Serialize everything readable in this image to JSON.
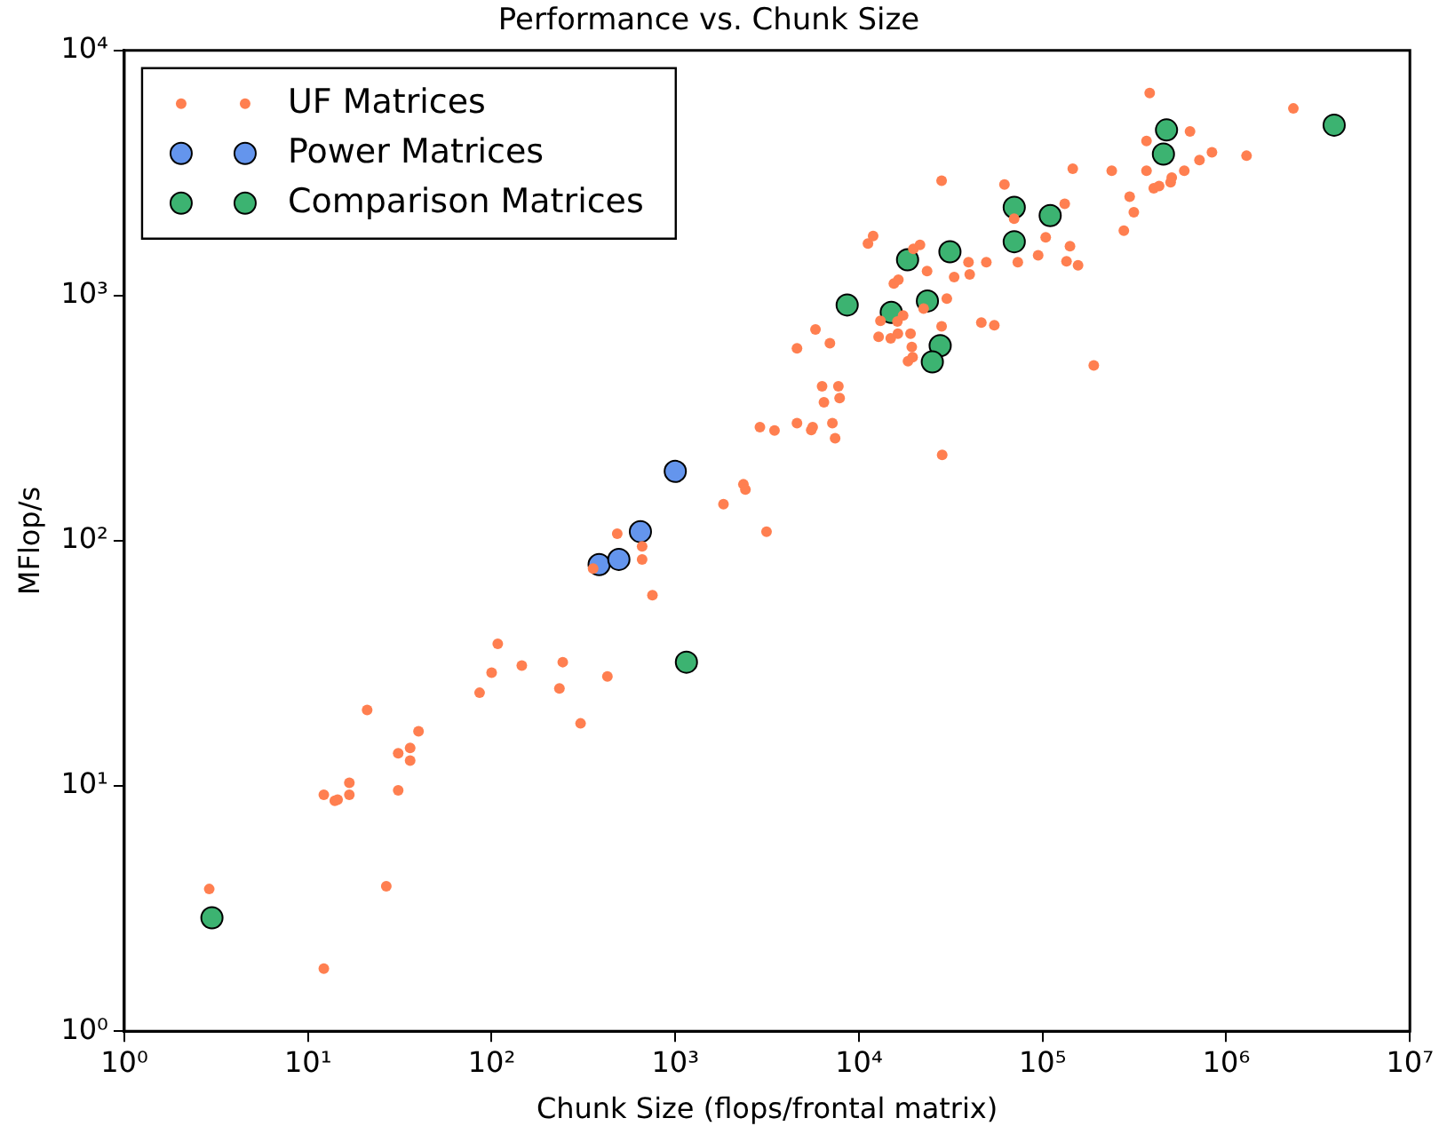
{
  "chart_data": {
    "type": "scatter",
    "title": "Performance vs. Chunk Size",
    "xlabel": "Chunk Size (flops/frontal matrix)",
    "ylabel": "MFlop/s",
    "log": "xy",
    "grid": false,
    "legend": "top left",
    "marker": "circle",
    "xlim": [
      1,
      10000000
    ],
    "ylim": [
      1,
      10000
    ],
    "xticks": [
      {
        "value": 1,
        "label": "10⁰"
      },
      {
        "value": 10,
        "label": "10¹"
      },
      {
        "value": 100,
        "label": "10²"
      },
      {
        "value": 1000,
        "label": "10³"
      },
      {
        "value": 10000,
        "label": "10⁴"
      },
      {
        "value": 100000,
        "label": "10⁵"
      },
      {
        "value": 1000000,
        "label": "10⁶"
      },
      {
        "value": 10000000,
        "label": "10⁷"
      }
    ],
    "yticks": [
      {
        "value": 1,
        "label": "10⁰"
      },
      {
        "value": 10,
        "label": "10¹"
      },
      {
        "value": 100,
        "label": "10²"
      },
      {
        "value": 1000,
        "label": "10³"
      },
      {
        "value": 10000,
        "label": "10⁴"
      }
    ],
    "series": [
      {
        "name": "UF Matrices",
        "color": "#ff7f50",
        "x": [
          2.9,
          12.2,
          12.2,
          14,
          14.5,
          16.8,
          16.8,
          21,
          26.7,
          31,
          31,
          36,
          36,
          40,
          86,
          100,
          108,
          146,
          234,
          244,
          305,
          427,
          751,
          357,
          483,
          660,
          660,
          1830,
          2350,
          2410,
          3140,
          2890,
          3470,
          4600,
          5500,
          5600,
          7170,
          7420,
          6300,
          7730,
          6450,
          7850,
          4600,
          5800,
          6950,
          11200,
          11950,
          13100,
          12800,
          14900,
          16200,
          17400,
          16300,
          19100,
          19400,
          18500,
          19600,
          22500,
          28200,
          30100,
          28400,
          15500,
          16400,
          19800,
          21500,
          23500,
          33000,
          39500,
          40100,
          49400,
          28200,
          46400,
          54600,
          62000,
          70000,
          73300,
          94600,
          104000,
          132000,
          141000,
          135000,
          156000,
          146000,
          190000,
          238000,
          277000,
          298000,
          314000,
          368000,
          368000,
          403000,
          431000,
          498000,
          505000,
          591000,
          635000,
          715000,
          836000,
          1290000,
          383000,
          2320000
        ],
        "values": [
          3.8,
          1.8,
          9.2,
          8.7,
          8.8,
          9.2,
          10.3,
          20.4,
          3.9,
          9.6,
          13.6,
          14.3,
          12.7,
          16.7,
          24,
          29,
          38,
          31,
          25,
          32,
          18,
          28,
          60,
          77,
          107,
          95,
          84,
          141,
          170,
          162,
          109,
          291,
          282,
          302,
          283,
          291,
          302,
          262,
          427,
          427,
          367,
          382,
          610,
          728,
          640,
          1630,
          1750,
          790,
          680,
          670,
          784,
          830,
          700,
          700,
          617,
          540,
          561,
          885,
          750,
          973,
          224,
          1120,
          1160,
          1550,
          1610,
          1260,
          1190,
          1370,
          1220,
          1370,
          2940,
          776,
          757,
          2840,
          2060,
          1370,
          1460,
          1730,
          2370,
          1590,
          1380,
          1330,
          3290,
          519,
          3230,
          1840,
          2530,
          2190,
          3230,
          4270,
          2740,
          2800,
          2900,
          3030,
          3230,
          4670,
          3570,
          3840,
          3720,
          6700,
          5800
        ]
      },
      {
        "name": "Power Matrices",
        "color": "#6495ed",
        "x": [
          385,
          493,
          646,
          1000
        ],
        "values": [
          80,
          84,
          109,
          192
        ]
      },
      {
        "name": "Comparison Matrices",
        "color": "#3cb371",
        "x": [
          3,
          1150,
          8630,
          15000,
          18400,
          23600,
          27700,
          25100,
          31300,
          70100,
          70100,
          110000,
          455000,
          473000,
          3870000
        ],
        "values": [
          2.9,
          32,
          916,
          855,
          1400,
          951,
          625,
          537,
          1510,
          2290,
          1660,
          2120,
          3780,
          4740,
          4960
        ]
      }
    ]
  }
}
